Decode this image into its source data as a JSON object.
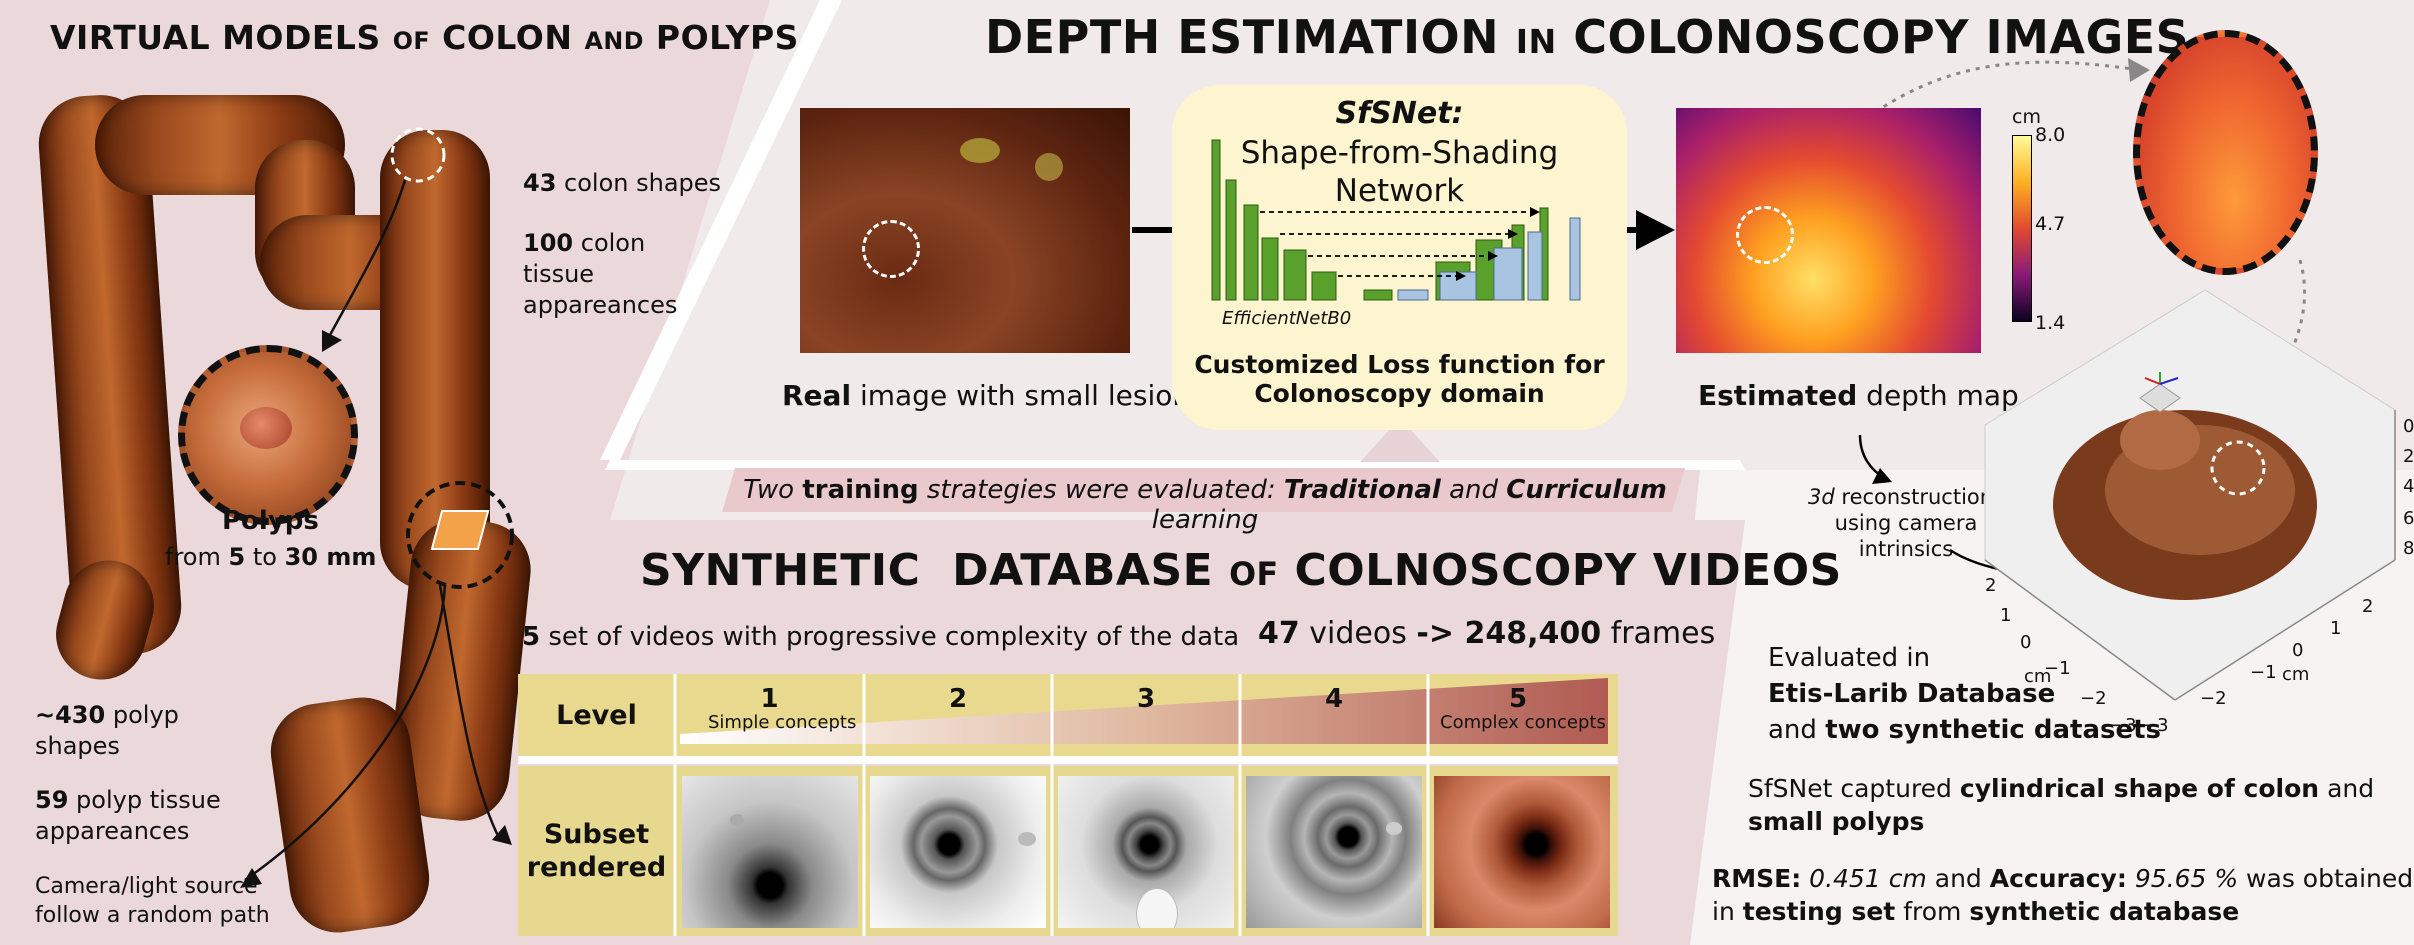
{
  "colors": {
    "left_bg": "#ead8da",
    "center_bg": "#efe7e8",
    "sfsnet_bg": "#fdf5cf",
    "table_header": "#e8d98f",
    "table_body": "#e6d88e",
    "green_bar": "#5aa02c",
    "blue_bar": "#a8c4e0",
    "colon_tissue": "#9a4a1e"
  },
  "left_panel": {
    "title": {
      "p1": "VIRTUAL MODELS",
      "p2": "OF",
      "p3": "COLON",
      "p4": "AND",
      "p5": "POLYPS"
    },
    "colon_shapes": {
      "num": "43",
      "text": "colon shapes"
    },
    "tissue": {
      "num": "100",
      "text1": "colon",
      "text2": "tissue",
      "text3": "appareances"
    },
    "polyps": {
      "title": "Polyps",
      "from": "from",
      "min": "5",
      "to": "to",
      "max": "30 mm"
    },
    "polyp_shapes": {
      "num": "~430",
      "text1": "polyp",
      "text2": "shapes"
    },
    "polyp_tissue": {
      "num": "59",
      "text1": "polyp tissue",
      "text2": "appareances"
    },
    "camera": {
      "line1": "Camera/light source",
      "line2": "follow a random path"
    }
  },
  "depth_panel": {
    "title": {
      "p1": "DEPTH ESTIMATION",
      "p2": "IN",
      "p3": "COLONOSCOPY IMAGES"
    },
    "real_caption": {
      "bold": "Real",
      "rest": "image with small lesion"
    },
    "sfsnet": {
      "name": "SfSNet:",
      "line1": "Shape-from-Shading",
      "line2": "Network",
      "encoder": "EfficientNetB0",
      "loss1": "Customized Loss function for",
      "loss2": "Colonoscopy domain"
    },
    "est_caption": {
      "bold": "Estimated",
      "rest": "depth map"
    },
    "colorbar": {
      "unit": "cm",
      "ticks": [
        "8.0",
        "4.7",
        "1.4"
      ]
    },
    "recon": {
      "l1a": "3d",
      "l1b": "reconstructions",
      "l2": "using camera",
      "l3": "intrinsics"
    },
    "axis": {
      "z_ticks": [
        "0",
        "2",
        "4",
        "6",
        "8"
      ],
      "left_ticks": [
        "2",
        "1",
        "0",
        "−1",
        "−2",
        "−3"
      ],
      "right_ticks": [
        "−3",
        "−2",
        "−1",
        "0",
        "1",
        "2"
      ],
      "unit": "cm"
    }
  },
  "training": {
    "p1": "Two",
    "p2": "training",
    "p3": "strategies were evaluated:",
    "p4": "Traditional",
    "p5": "and",
    "p6": "Curriculum",
    "p7": "learning"
  },
  "synthetic": {
    "title": {
      "p1": "SYNTHETIC  DATABASE",
      "p2": "OF",
      "p3": "COLNOSCOPY VIDEOS"
    },
    "sets": {
      "num": "5",
      "text": "set of videos with progressive complexity of the data"
    },
    "videos": {
      "num": "47",
      "text": "videos",
      "arrow": "-> 248,400",
      "frames": "frames"
    },
    "level_label": "Level",
    "levels": [
      "1",
      "2",
      "3",
      "4",
      "5"
    ],
    "simple": "Simple concepts",
    "complex": "Complex concepts",
    "subset1": "Subset",
    "subset2": "rendered"
  },
  "results": {
    "eval1": "Evaluated in",
    "eval2": "Etis-Larib Database",
    "eval3a": "and",
    "eval3b": "two synthetic datasets",
    "cap1a": "SfSNet captured",
    "cap1b": "cylindrical shape of colon",
    "cap1c": "and",
    "cap2": "small polyps",
    "rmse_label": "RMSE:",
    "rmse_value": "0.451 cm",
    "acc_pre": "and",
    "acc_label": "Accuracy:",
    "acc_value": "95.65 %",
    "acc_post": "was obtained",
    "line2a": "in",
    "line2b": "testing set",
    "line2c": "from",
    "line2d": "synthetic database"
  }
}
